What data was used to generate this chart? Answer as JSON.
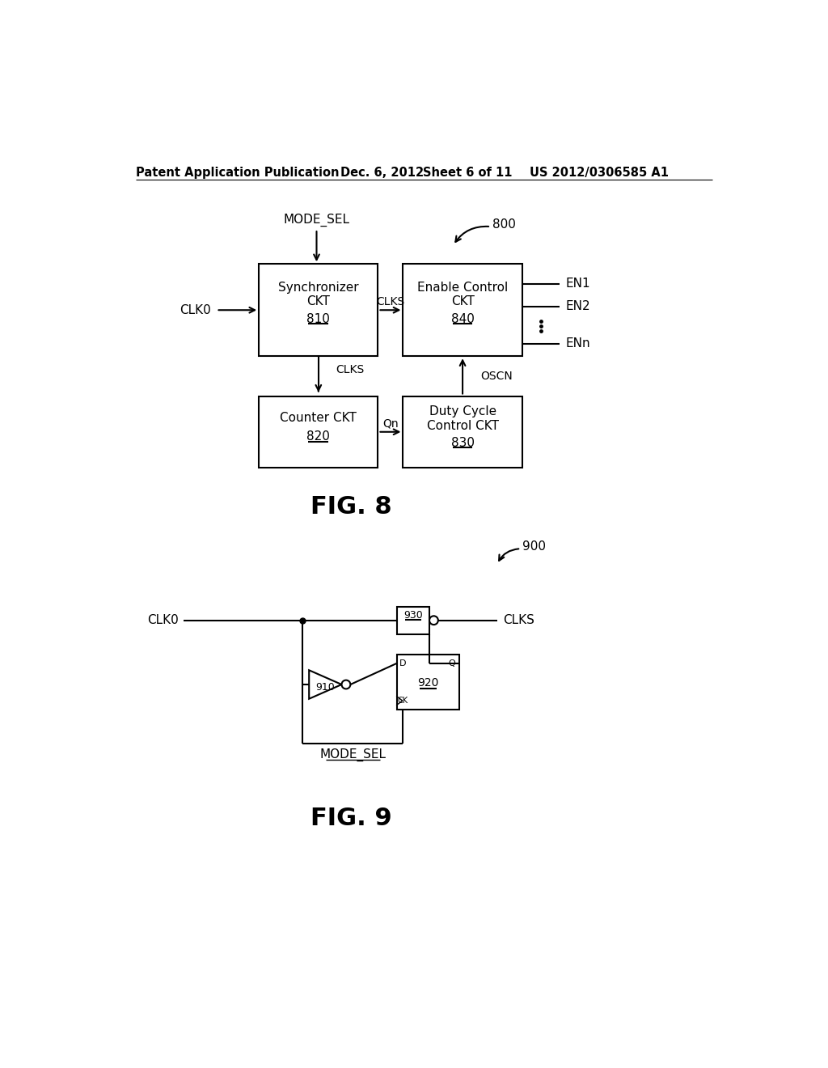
{
  "bg_color": "#ffffff",
  "header_text": "Patent Application Publication",
  "header_date": "Dec. 6, 2012",
  "header_sheet": "Sheet 6 of 11",
  "header_patent": "US 2012/0306585 A1",
  "fig8_label": "FIG. 8",
  "fig9_label": "FIG. 9",
  "fig8_ref": "800",
  "fig9_ref": "900",
  "line_color": "#000000",
  "text_color": "#000000",
  "font_size_header": 11,
  "font_size_body": 11,
  "font_size_fig": 22
}
